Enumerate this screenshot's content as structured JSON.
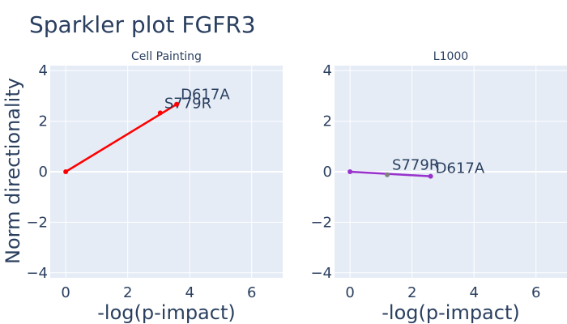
{
  "title": "Sparkler plot FGFR3",
  "ylabel": "Norm directionality",
  "chart_data": [
    {
      "type": "line",
      "subtitle": "Cell Painting",
      "xlabel": "-log(p-impact)",
      "xlim": [
        -0.5,
        7
      ],
      "ylim": [
        -4.2,
        4.2
      ],
      "xticks": [
        0,
        2,
        4,
        6
      ],
      "yticks": [
        -4,
        -2,
        0,
        2,
        4
      ],
      "grid": true,
      "color": "#ff0000",
      "points": [
        {
          "label": "",
          "x": 0,
          "y": 0
        },
        {
          "label": "S779R",
          "x": 3.05,
          "y": 2.33
        },
        {
          "label": "D617A",
          "x": 3.58,
          "y": 2.67
        }
      ]
    },
    {
      "type": "line",
      "subtitle": "L1000",
      "xlabel": "-log(p-impact)",
      "xlim": [
        -0.5,
        7
      ],
      "ylim": [
        -4.2,
        4.2
      ],
      "xticks": [
        0,
        2,
        4,
        6
      ],
      "yticks": [
        -4,
        -2,
        0,
        2,
        4
      ],
      "grid": true,
      "color": "#9932cc",
      "marker_colors": [
        "#9932cc",
        "#808080",
        "#9932cc"
      ],
      "points": [
        {
          "label": "",
          "x": 0,
          "y": 0
        },
        {
          "label": "S779R",
          "x": 1.2,
          "y": -0.12
        },
        {
          "label": "D617A",
          "x": 2.6,
          "y": -0.18
        }
      ]
    }
  ]
}
